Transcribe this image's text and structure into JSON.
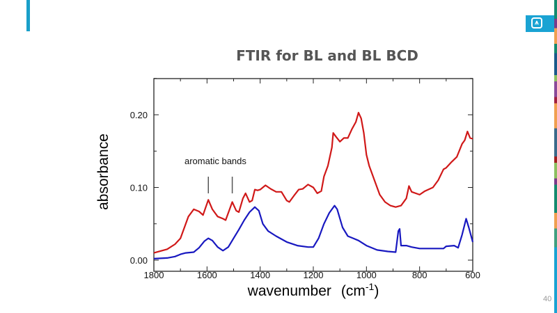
{
  "slide": {
    "title": "FTIR for BL and BL BCD",
    "page_number": "40",
    "logo": "Sandia thunderbird logo"
  },
  "colors": {
    "accent": "#1a9fc9",
    "red_series": "#d01818",
    "blue_series": "#1818c0"
  },
  "chart_data": {
    "type": "line",
    "title": "FTIR for BL and BL BCD",
    "xlabel": "wavenumber",
    "xlabel_unit": "(cm",
    "xlabel_sup": "-1",
    "xlabel_close": ")",
    "ylabel": "absorbance",
    "xlim": [
      1800,
      600
    ],
    "ylim": [
      -0.001,
      0.25
    ],
    "x_ticks": [
      1800,
      1600,
      1400,
      1200,
      1000,
      800,
      600
    ],
    "x_tick_labels": [
      "1800",
      "1600",
      "1400",
      "1200",
      "1000",
      "800",
      "600"
    ],
    "y_ticks": [
      0.0,
      0.1,
      0.2
    ],
    "y_tick_labels": [
      "0.00",
      "0.10",
      "0.20"
    ],
    "grid": false,
    "annotation": {
      "text": "aromatic bands",
      "markers_at": [
        1595,
        1505
      ]
    },
    "series": [
      {
        "name": "BL",
        "color": "#d01818",
        "x": [
          1800,
          1750,
          1720,
          1700,
          1670,
          1650,
          1630,
          1615,
          1595,
          1580,
          1560,
          1540,
          1530,
          1515,
          1505,
          1490,
          1480,
          1465,
          1455,
          1440,
          1430,
          1420,
          1410,
          1400,
          1380,
          1360,
          1340,
          1320,
          1300,
          1290,
          1270,
          1255,
          1240,
          1220,
          1200,
          1185,
          1170,
          1160,
          1145,
          1130,
          1125,
          1115,
          1100,
          1085,
          1070,
          1055,
          1040,
          1030,
          1020,
          1010,
          1000,
          990,
          970,
          950,
          930,
          910,
          890,
          870,
          850,
          840,
          830,
          800,
          780,
          750,
          730,
          710,
          700,
          680,
          660,
          640,
          630,
          620,
          610,
          600
        ],
        "y": [
          0.01,
          0.015,
          0.022,
          0.03,
          0.06,
          0.07,
          0.067,
          0.062,
          0.083,
          0.07,
          0.06,
          0.057,
          0.055,
          0.07,
          0.08,
          0.068,
          0.066,
          0.085,
          0.092,
          0.08,
          0.082,
          0.097,
          0.096,
          0.097,
          0.103,
          0.098,
          0.094,
          0.094,
          0.082,
          0.08,
          0.09,
          0.097,
          0.098,
          0.104,
          0.1,
          0.092,
          0.095,
          0.115,
          0.13,
          0.155,
          0.175,
          0.17,
          0.163,
          0.168,
          0.168,
          0.18,
          0.19,
          0.203,
          0.195,
          0.175,
          0.145,
          0.13,
          0.11,
          0.09,
          0.08,
          0.075,
          0.073,
          0.075,
          0.085,
          0.102,
          0.094,
          0.09,
          0.095,
          0.1,
          0.11,
          0.125,
          0.127,
          0.135,
          0.142,
          0.16,
          0.165,
          0.177,
          0.168,
          0.167
        ]
      },
      {
        "name": "BL BCD",
        "color": "#1818c0",
        "x": [
          1800,
          1750,
          1720,
          1700,
          1680,
          1650,
          1630,
          1610,
          1595,
          1580,
          1560,
          1540,
          1520,
          1500,
          1480,
          1460,
          1440,
          1420,
          1405,
          1390,
          1370,
          1340,
          1300,
          1260,
          1220,
          1200,
          1180,
          1160,
          1140,
          1120,
          1110,
          1090,
          1070,
          1050,
          1030,
          1000,
          960,
          920,
          890,
          880,
          875,
          870,
          850,
          830,
          800,
          750,
          710,
          700,
          670,
          655,
          640,
          625,
          615,
          600
        ],
        "y": [
          0.002,
          0.003,
          0.005,
          0.008,
          0.01,
          0.011,
          0.017,
          0.026,
          0.03,
          0.027,
          0.018,
          0.013,
          0.018,
          0.03,
          0.042,
          0.055,
          0.066,
          0.073,
          0.068,
          0.05,
          0.04,
          0.033,
          0.025,
          0.02,
          0.018,
          0.018,
          0.03,
          0.05,
          0.065,
          0.075,
          0.07,
          0.045,
          0.033,
          0.03,
          0.027,
          0.02,
          0.014,
          0.012,
          0.011,
          0.04,
          0.043,
          0.02,
          0.02,
          0.018,
          0.016,
          0.016,
          0.016,
          0.019,
          0.02,
          0.017,
          0.035,
          0.057,
          0.045,
          0.025
        ]
      }
    ]
  }
}
